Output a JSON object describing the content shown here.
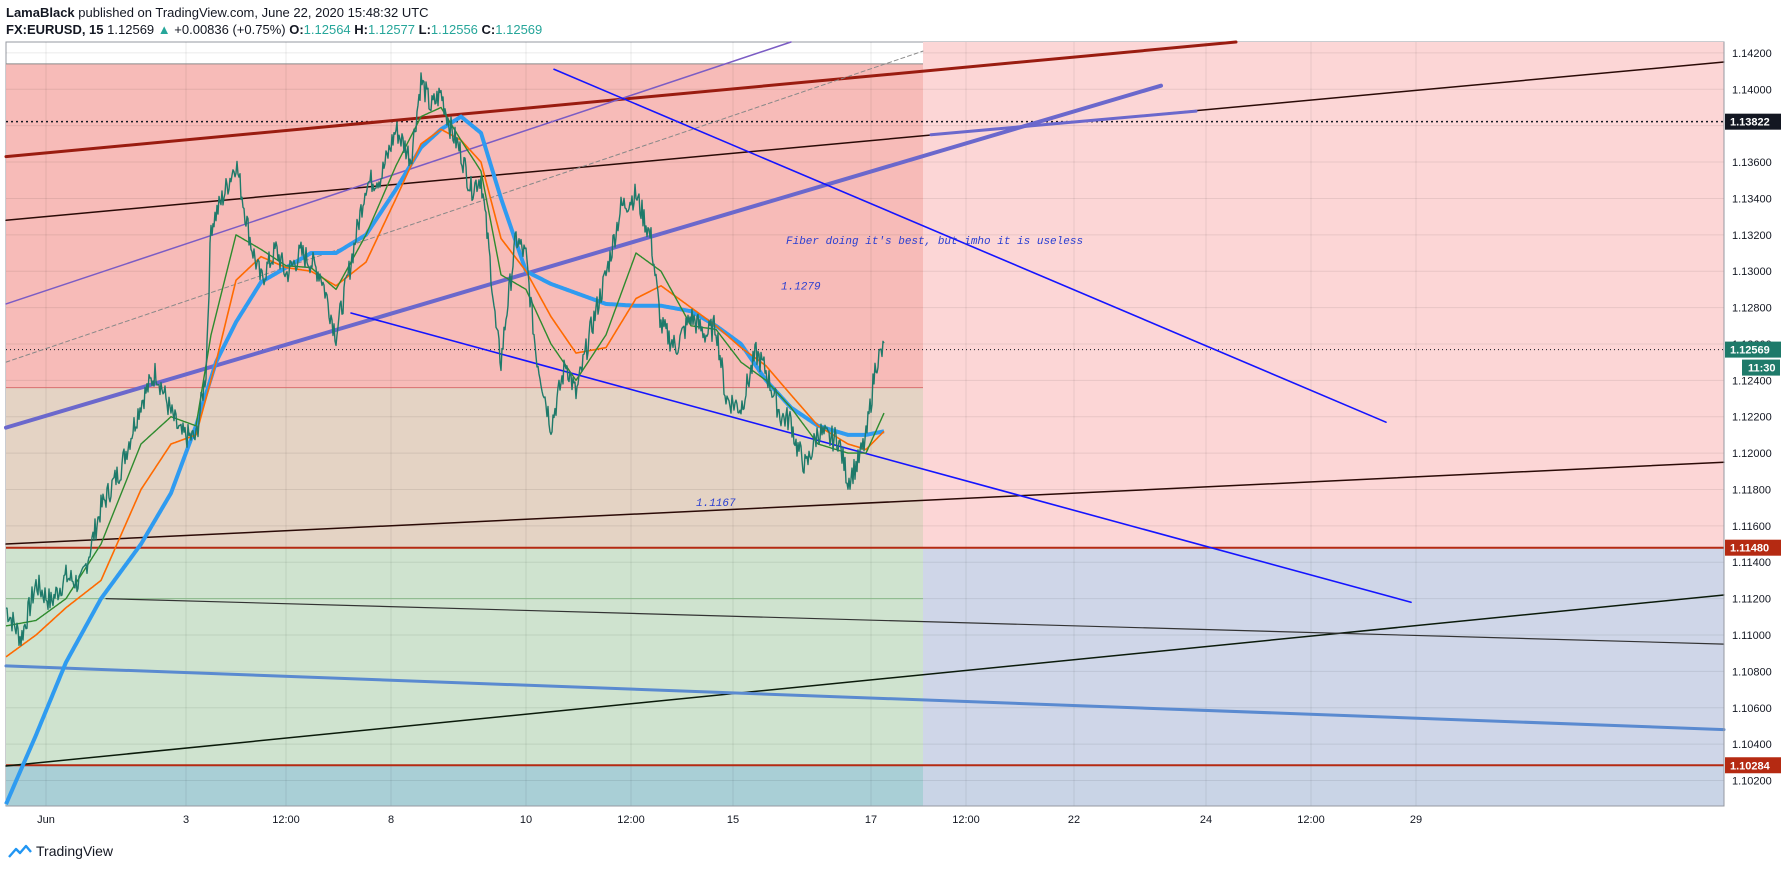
{
  "header": {
    "author": "LamaBlack",
    "published": "published on TradingView.com, June 22, 2020 15:48:32 UTC",
    "symbol": "FX:EURUSD, 15",
    "last": "1.12569",
    "change": "+0.00836 (+0.75%)",
    "o_label": "O:",
    "o": "1.12564",
    "h_label": "H:",
    "h": "1.12577",
    "l_label": "L:",
    "l": "1.12556",
    "c_label": "C:",
    "c": "1.12569"
  },
  "footer": {
    "brand": "TradingView",
    "icon": "tradingview-logo-icon"
  },
  "colors": {
    "candle": "#1e7a6a",
    "ema_fast": "#2e8b2e",
    "ema_mid": "#ff6a00",
    "ema_slow": "#2f9bf0",
    "channel": "#1414ff",
    "resistance_band": "#f8b8b8",
    "support_band": "#cde4d0",
    "level_red": "#b52a12"
  },
  "chart_data": {
    "type": "line",
    "title": "",
    "xlabel": "",
    "ylabel": "",
    "ylim": [
      1.1006,
      1.1426
    ],
    "x_ticks": [
      "Jun",
      "3",
      "12:00",
      "8",
      "10",
      "12:00",
      "15",
      "17",
      "12:00",
      "22",
      "24",
      "12:00",
      "29"
    ],
    "y_ticks": [
      "1.14200",
      "1.14000",
      "1.13800",
      "1.13600",
      "1.13400",
      "1.13200",
      "1.13000",
      "1.12800",
      "1.12600",
      "1.12400",
      "1.12200",
      "1.12000",
      "1.11800",
      "1.11600",
      "1.11400",
      "1.11200",
      "1.11000",
      "1.10800",
      "1.10600",
      "1.10400",
      "1.10200"
    ],
    "price_tags": [
      {
        "value": 1.13822,
        "label": "1.13822",
        "bg": "#131722"
      },
      {
        "value": 1.12569,
        "label": "1.12569",
        "bg": "#1e7a6a"
      },
      {
        "value": 1.1148,
        "label": "1.11480",
        "bg": "#b52a12"
      },
      {
        "value": 1.10284,
        "label": "1.10284",
        "bg": "#b52a12"
      }
    ],
    "countdown": "11:30",
    "annotations": [
      {
        "text": "Fiber doing it's best, but imho it is useless",
        "bar": 780,
        "y": 1.1315
      },
      {
        "text": "1.1279",
        "bar": 775,
        "y": 1.129
      },
      {
        "text": "1.1167",
        "bar": 690,
        "y": 1.1171
      }
    ],
    "series": [
      {
        "name": "",
        "kind": "price",
        "x": [
          0,
          15,
          30,
          45,
          60,
          75,
          95,
          115,
          135,
          150,
          165,
          175,
          190,
          200,
          205,
          215,
          230,
          245,
          255,
          270,
          280,
          295,
          305,
          315,
          330,
          345,
          360,
          375,
          390,
          405,
          415,
          425,
          435,
          445,
          455,
          465,
          475,
          485,
          490,
          495,
          500,
          510,
          520,
          530,
          545,
          560,
          570,
          585,
          600,
          615,
          630,
          645,
          655,
          670,
          685,
          700,
          710,
          720,
          735,
          750,
          760,
          775,
          785,
          790,
          800,
          812,
          822,
          832,
          842,
          852,
          860,
          870,
          878
        ],
        "y": [
          1.1115,
          1.1098,
          1.1128,
          1.1118,
          1.1132,
          1.1128,
          1.117,
          1.1192,
          1.1228,
          1.1245,
          1.1222,
          1.121,
          1.1208,
          1.1245,
          1.1325,
          1.1338,
          1.136,
          1.1315,
          1.1295,
          1.1312,
          1.1298,
          1.131,
          1.1305,
          1.1298,
          1.1265,
          1.1305,
          1.1348,
          1.1352,
          1.1378,
          1.1362,
          1.1405,
          1.139,
          1.1398,
          1.1378,
          1.1365,
          1.1345,
          1.1352,
          1.13,
          1.1268,
          1.125,
          1.1275,
          1.1318,
          1.1308,
          1.1255,
          1.1215,
          1.125,
          1.1232,
          1.1268,
          1.1298,
          1.1335,
          1.1342,
          1.1318,
          1.127,
          1.1258,
          1.1275,
          1.1265,
          1.127,
          1.123,
          1.1225,
          1.1255,
          1.1245,
          1.122,
          1.1218,
          1.1205,
          1.1192,
          1.1212,
          1.1208,
          1.1208,
          1.1185,
          1.1195,
          1.1208,
          1.125,
          1.1257
        ]
      },
      {
        "name": "",
        "kind": "ema_fast",
        "x": [
          0,
          30,
          60,
          95,
          135,
          165,
          190,
          205,
          230,
          255,
          280,
          305,
          330,
          360,
          390,
          415,
          435,
          455,
          475,
          495,
          520,
          545,
          570,
          600,
          630,
          655,
          685,
          710,
          735,
          760,
          785,
          812,
          842,
          860,
          878
        ],
        "y": [
          1.1105,
          1.1108,
          1.112,
          1.115,
          1.1205,
          1.122,
          1.1215,
          1.1265,
          1.132,
          1.1312,
          1.1303,
          1.1302,
          1.129,
          1.132,
          1.1358,
          1.1385,
          1.139,
          1.1372,
          1.1355,
          1.1298,
          1.129,
          1.126,
          1.124,
          1.1265,
          1.131,
          1.13,
          1.127,
          1.1268,
          1.125,
          1.124,
          1.1225,
          1.1205,
          1.12,
          1.12,
          1.1222
        ]
      },
      {
        "name": "",
        "kind": "ema_mid",
        "x": [
          0,
          30,
          60,
          95,
          135,
          165,
          190,
          210,
          230,
          255,
          280,
          305,
          330,
          360,
          390,
          415,
          435,
          455,
          475,
          495,
          520,
          545,
          570,
          600,
          630,
          655,
          685,
          710,
          735,
          760,
          785,
          812,
          842,
          860,
          878
        ],
        "y": [
          1.1088,
          1.11,
          1.1115,
          1.113,
          1.118,
          1.1205,
          1.121,
          1.125,
          1.1295,
          1.1308,
          1.1302,
          1.13,
          1.1292,
          1.1305,
          1.134,
          1.137,
          1.1378,
          1.1372,
          1.136,
          1.1318,
          1.13,
          1.1275,
          1.1255,
          1.1258,
          1.1285,
          1.1292,
          1.128,
          1.127,
          1.1258,
          1.1248,
          1.1232,
          1.1215,
          1.1205,
          1.1202,
          1.1212
        ]
      },
      {
        "name": "",
        "kind": "ema_slow",
        "x": [
          0,
          30,
          60,
          95,
          135,
          165,
          190,
          210,
          230,
          255,
          280,
          305,
          330,
          360,
          390,
          415,
          435,
          455,
          475,
          495,
          520,
          545,
          570,
          600,
          630,
          655,
          685,
          710,
          735,
          760,
          785,
          812,
          842,
          860,
          878
        ],
        "y": [
          1.1007,
          1.1045,
          1.1085,
          1.112,
          1.115,
          1.1178,
          1.1215,
          1.125,
          1.1272,
          1.1294,
          1.1302,
          1.131,
          1.131,
          1.132,
          1.1345,
          1.1368,
          1.1378,
          1.1385,
          1.1376,
          1.134,
          1.13,
          1.1293,
          1.1288,
          1.1282,
          1.1281,
          1.1281,
          1.1278,
          1.127,
          1.126,
          1.124,
          1.1225,
          1.1215,
          1.121,
          1.121,
          1.1212
        ]
      }
    ]
  }
}
